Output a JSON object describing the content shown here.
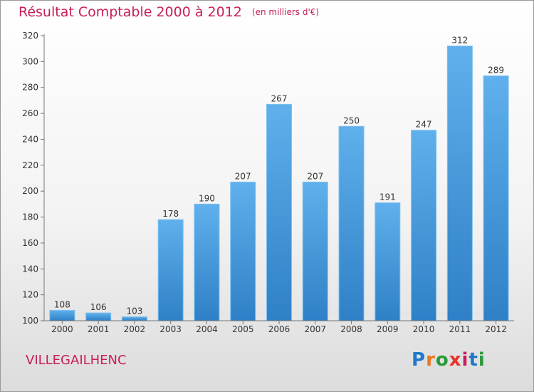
{
  "title": "Résultat Comptable 2000 à 2012",
  "subtitle": "(en milliers d'€)",
  "commune": "VILLEGAILHENC",
  "brand": {
    "letters": [
      "P",
      "r",
      "o",
      "x",
      "i",
      "t",
      "i"
    ],
    "colors": [
      "#1f78c8",
      "#e8781e",
      "#2a9a3a",
      "#e8312a",
      "#c81e5a",
      "#1f78c8",
      "#2a9a3a"
    ]
  },
  "colors": {
    "bar": "#4a9ee0",
    "bar_top": "#6bb8ee",
    "accent": "#c81e5a",
    "axis_text": "#333333"
  },
  "chart_data": {
    "type": "bar",
    "title": "Résultat Comptable 2000 à 2012",
    "xlabel": "",
    "ylabel": "",
    "categories": [
      "2000",
      "2001",
      "2002",
      "2003",
      "2004",
      "2005",
      "2006",
      "2007",
      "2008",
      "2009",
      "2010",
      "2011",
      "2012"
    ],
    "values": [
      108,
      106,
      103,
      178,
      190,
      207,
      267,
      207,
      250,
      191,
      247,
      312,
      289
    ],
    "ylim": [
      100,
      320
    ],
    "yticks": [
      100,
      120,
      140,
      160,
      180,
      200,
      220,
      240,
      260,
      280,
      300,
      320
    ],
    "grid": false,
    "unit": "milliers d'€"
  }
}
